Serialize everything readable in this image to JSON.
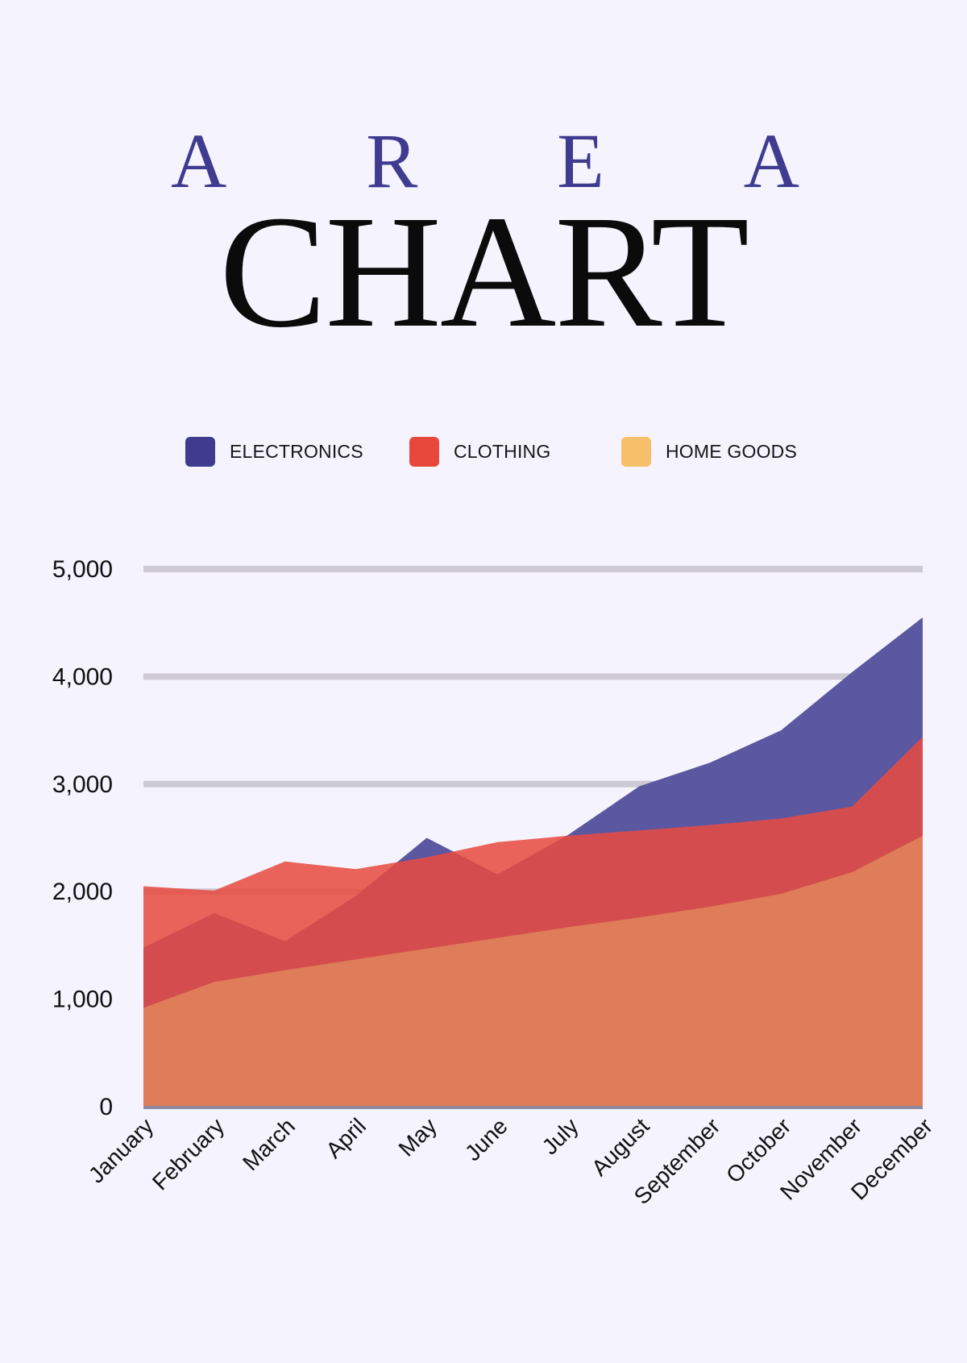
{
  "title_top": [
    "A",
    "R",
    "E",
    "A"
  ],
  "title_main": "CHART",
  "legend": [
    {
      "label": "ELECTRONICS",
      "color": "#3f3b8f"
    },
    {
      "label": "CLOTHING",
      "color": "#e8473b"
    },
    {
      "label": "HOME GOODS",
      "color": "#f6c06b"
    }
  ],
  "colors": {
    "background": "#f5f3fd",
    "grid": "#cdcad6",
    "electronics_fill": "#5b57a0",
    "clothing_fill": "#e84a3f",
    "home_goods_fill": "#e0805a",
    "title_accent": "#3f3b8f"
  },
  "chart_data": {
    "type": "area",
    "title": "AREA CHART",
    "categories": [
      "January",
      "February",
      "March",
      "April",
      "May",
      "June",
      "July",
      "August",
      "September",
      "October",
      "November",
      "December"
    ],
    "series": [
      {
        "name": "ELECTRONICS",
        "values": [
          1480,
          1800,
          1540,
          1960,
          2500,
          2160,
          2530,
          2980,
          3200,
          3500,
          4040,
          4550
        ]
      },
      {
        "name": "CLOTHING",
        "values": [
          2050,
          2010,
          2280,
          2210,
          2320,
          2460,
          2520,
          2570,
          2620,
          2680,
          2790,
          3440
        ]
      },
      {
        "name": "HOME GOODS",
        "values": [
          920,
          1160,
          1270,
          1370,
          1470,
          1570,
          1670,
          1760,
          1860,
          1980,
          2180,
          2520
        ]
      }
    ],
    "y_ticks": [
      "5,000",
      "4,000",
      "3,000",
      "2,000",
      "1,000",
      "0"
    ],
    "ylim": [
      0,
      5000
    ],
    "xlabel": "",
    "ylabel": "",
    "legend_position": "top"
  }
}
